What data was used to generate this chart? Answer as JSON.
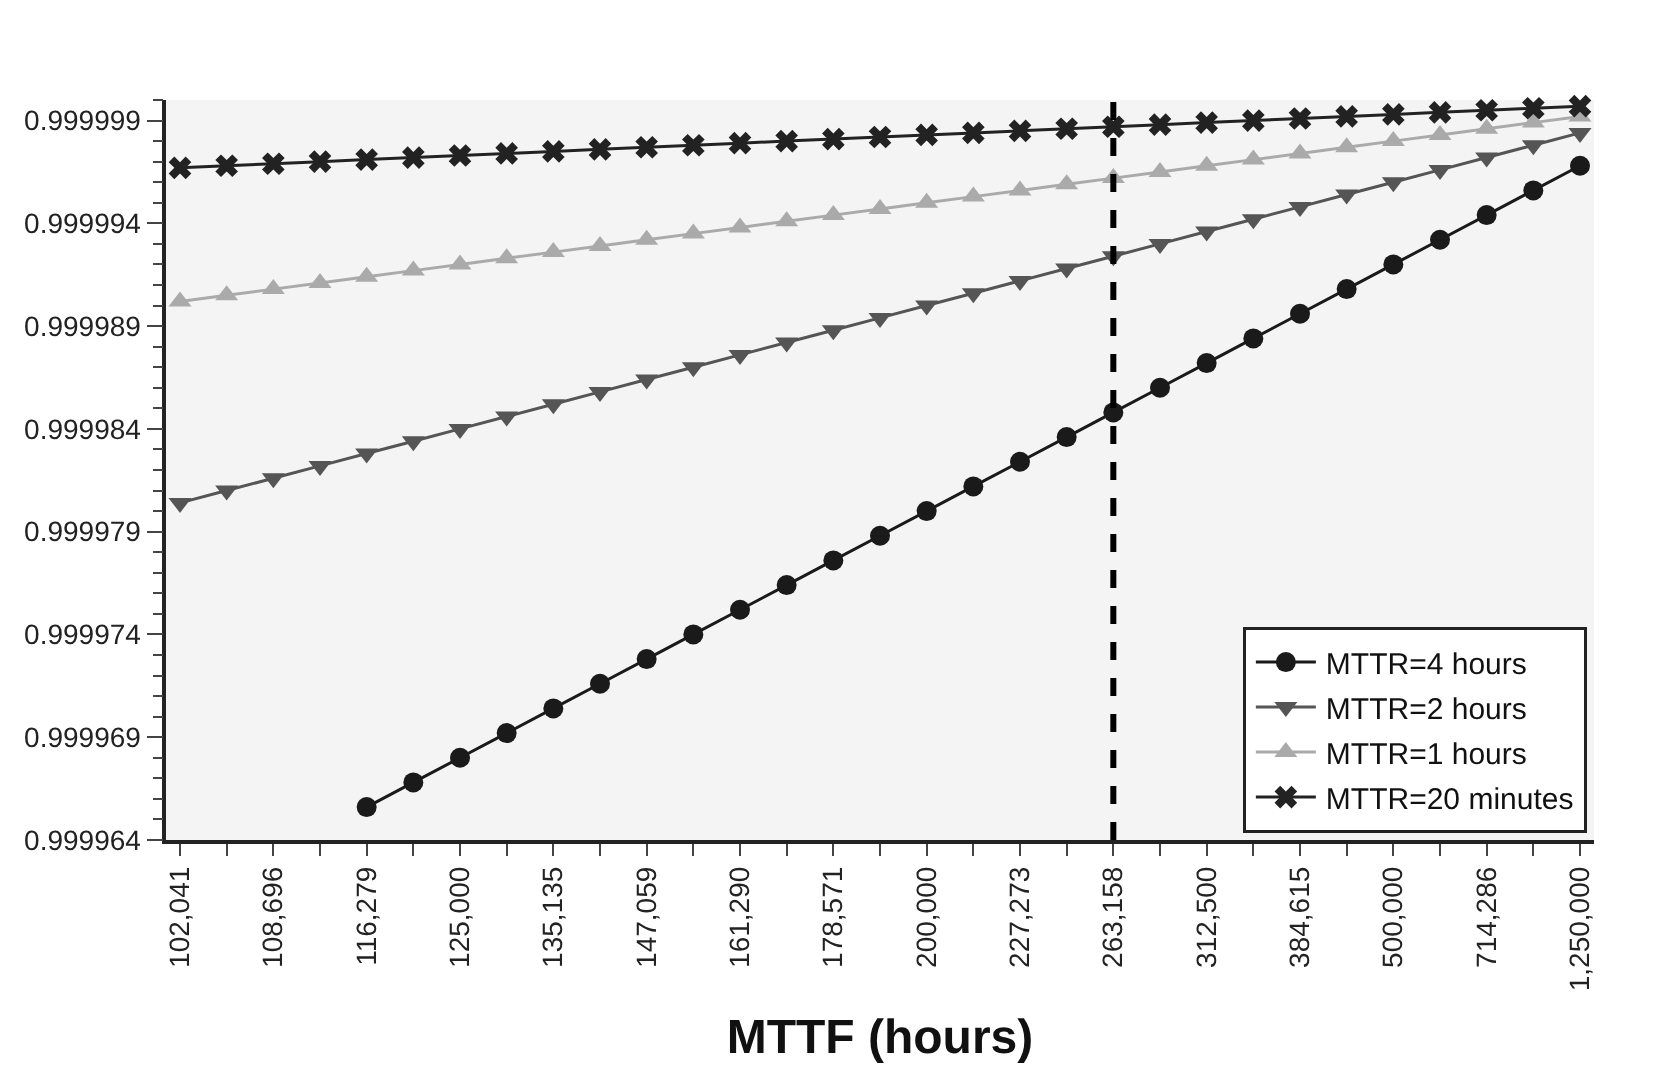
{
  "chart_data": {
    "type": "line",
    "xlabel": "MTTF (hours)",
    "categories": [
      "102,041",
      null,
      "108,696",
      null,
      "116,279",
      null,
      "125,000",
      null,
      "135,135",
      null,
      "147,059",
      null,
      "161,290",
      null,
      "178,571",
      null,
      "200,000",
      null,
      "227,273",
      null,
      "263,158",
      null,
      "312,500",
      null,
      "384,615",
      null,
      "500,000",
      null,
      "714,286",
      null,
      "1,250,000"
    ],
    "series": [
      {
        "name": "MTTR=4 hours",
        "color": "#1a1a1a",
        "marker": "circle",
        "values": [
          null,
          null,
          null,
          null,
          0.9999656,
          0.9999668,
          0.999968,
          0.9999692,
          0.9999704,
          0.9999716,
          0.9999728,
          0.999974,
          0.9999752,
          0.9999764,
          0.9999776,
          0.9999788,
          0.99998,
          0.9999812,
          0.9999824,
          0.9999836,
          0.9999848,
          0.999986,
          0.9999872,
          0.9999884,
          0.9999896,
          0.9999908,
          0.999992,
          0.9999932,
          0.9999944,
          0.9999956,
          0.9999968
        ]
      },
      {
        "name": "MTTR=2 hours",
        "color": "#555555",
        "marker": "triangle-down",
        "values": [
          0.9999804,
          0.999981,
          0.9999816,
          0.9999822,
          0.9999828,
          0.9999834,
          0.999984,
          0.9999846,
          0.9999852,
          0.9999858,
          0.9999864,
          0.999987,
          0.9999876,
          0.9999882,
          0.9999888,
          0.9999894,
          0.99999,
          0.9999906,
          0.9999912,
          0.9999918,
          0.9999924,
          0.999993,
          0.9999936,
          0.9999942,
          0.9999948,
          0.9999954,
          0.999996,
          0.9999966,
          0.9999972,
          0.9999978,
          0.9999984
        ]
      },
      {
        "name": "MTTR=1 hours",
        "color": "#aaaaaa",
        "marker": "triangle",
        "values": [
          0.9999902,
          0.9999905,
          0.9999908,
          0.9999911,
          0.9999914,
          0.9999917,
          0.999992,
          0.9999923,
          0.9999926,
          0.9999929,
          0.9999932,
          0.9999935,
          0.9999938,
          0.9999941,
          0.9999944,
          0.9999947,
          0.999995,
          0.9999953,
          0.9999956,
          0.9999959,
          0.9999962,
          0.9999965,
          0.9999968,
          0.9999971,
          0.9999974,
          0.9999977,
          0.999998,
          0.9999983,
          0.9999986,
          0.9999989,
          0.9999992
        ]
      },
      {
        "name": "MTTR=20 minutes",
        "color": "#222222",
        "marker": "cross",
        "values": [
          0.9999967,
          0.9999968,
          0.9999969,
          0.999997,
          0.9999971,
          0.9999972,
          0.9999973,
          0.9999974,
          0.9999975,
          0.9999976,
          0.9999977,
          0.9999978,
          0.9999979,
          0.999998,
          0.9999981,
          0.9999982,
          0.9999983,
          0.9999984,
          0.9999985,
          0.9999986,
          0.9999987,
          0.9999988,
          0.9999989,
          0.999999,
          0.9999991,
          0.9999992,
          0.9999993,
          0.9999994,
          0.9999995,
          0.9999996,
          0.9999997
        ]
      }
    ],
    "ylim": [
      0.999964,
      1.0
    ],
    "yticks": [
      0.999964,
      0.999969,
      0.999974,
      0.999979,
      0.999984,
      0.999989,
      0.999994,
      0.999999
    ],
    "ref_lines": [
      {
        "axis": "x",
        "value": "263,158",
        "color": "#000000",
        "line_style": "dashed"
      }
    ],
    "grid": false,
    "legend": "bottom right",
    "line_style": "solid"
  }
}
